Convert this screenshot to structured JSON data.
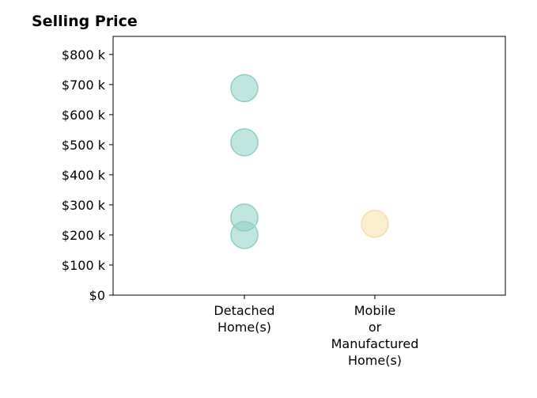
{
  "chart_data": {
    "type": "scatter",
    "title": "Selling Price",
    "xlabel": "",
    "ylabel": "",
    "categories": [
      [
        "Detached",
        "Home(s)"
      ],
      [
        "Mobile",
        "or",
        "Manufactured",
        "Home(s)"
      ]
    ],
    "ylim": [
      0,
      860000
    ],
    "yticks": [
      0,
      100000,
      200000,
      300000,
      400000,
      500000,
      600000,
      700000,
      800000
    ],
    "ytick_labels": [
      "$0",
      "$100 k",
      "$200 k",
      "$300 k",
      "$400 k",
      "$500 k",
      "$600 k",
      "$700 k",
      "$800 k"
    ],
    "grid": false,
    "series": [
      {
        "category_index": 0,
        "color": "#8ecfc5",
        "values": [
          688000,
          508000,
          258000,
          200000
        ]
      },
      {
        "category_index": 1,
        "color": "#f5dfaa",
        "values": [
          237000
        ]
      }
    ]
  }
}
